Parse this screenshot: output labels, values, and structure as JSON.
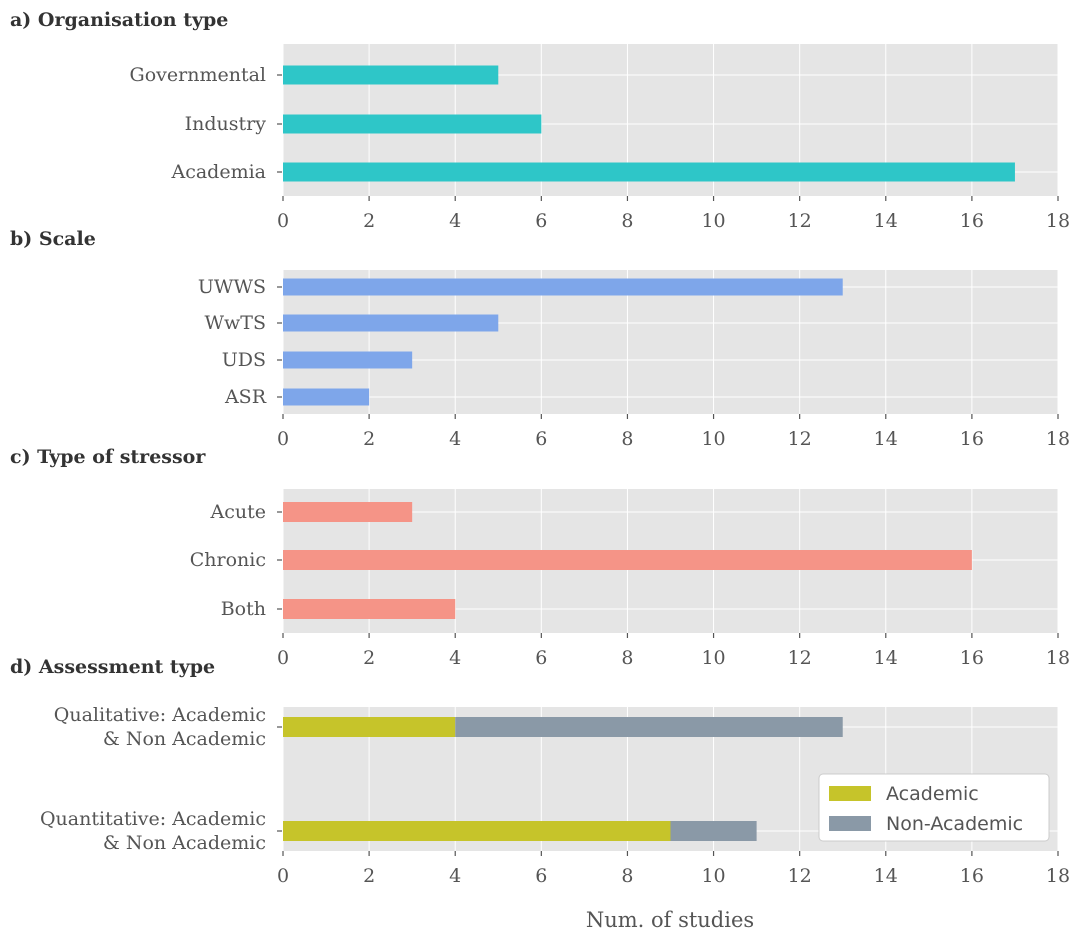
{
  "chart_data": [
    {
      "type": "bar",
      "orientation": "horizontal",
      "title": "a) Organisation type",
      "categories": [
        "Governmental",
        "Industry",
        "Academia"
      ],
      "values": [
        5,
        6,
        17
      ],
      "xlim": [
        0,
        18
      ],
      "xticks": [
        "0",
        "2",
        "4",
        "6",
        "8",
        "10",
        "12",
        "14",
        "16",
        "18"
      ],
      "color": "#2ec6c8",
      "grid": true
    },
    {
      "type": "bar",
      "orientation": "horizontal",
      "title": "b) Scale",
      "categories": [
        "UWWS",
        "WwTS",
        "UDS",
        "ASR"
      ],
      "values": [
        13,
        5,
        3,
        2
      ],
      "xlim": [
        0,
        18
      ],
      "xticks": [
        "0",
        "2",
        "4",
        "6",
        "8",
        "10",
        "12",
        "14",
        "16",
        "18"
      ],
      "color": "#7ea6ea",
      "grid": true
    },
    {
      "type": "bar",
      "orientation": "horizontal",
      "title": "c) Type of stressor",
      "categories": [
        "Acute",
        "Chronic",
        "Both"
      ],
      "values": [
        3,
        16,
        4
      ],
      "xlim": [
        0,
        18
      ],
      "xticks": [
        "0",
        "2",
        "4",
        "6",
        "8",
        "10",
        "12",
        "14",
        "16",
        "18"
      ],
      "color": "#f59487",
      "grid": true
    },
    {
      "type": "bar",
      "orientation": "horizontal",
      "stacked": true,
      "title": "d) Assessment type",
      "categories": [
        [
          "Qualitative: Academic",
          "& Non Academic"
        ],
        [
          "Quantitative: Academic",
          "& Non Academic"
        ]
      ],
      "series": [
        {
          "name": "Academic",
          "values": [
            4,
            9
          ],
          "color": "#c6c42a"
        },
        {
          "name": "Non-Academic",
          "values": [
            9,
            2
          ],
          "color": "#8a99a7"
        }
      ],
      "xlim": [
        0,
        18
      ],
      "xticks": [
        "0",
        "2",
        "4",
        "6",
        "8",
        "10",
        "12",
        "14",
        "16",
        "18"
      ],
      "xlabel": "Num. of studies",
      "legend": "lower-right",
      "grid": true
    }
  ]
}
